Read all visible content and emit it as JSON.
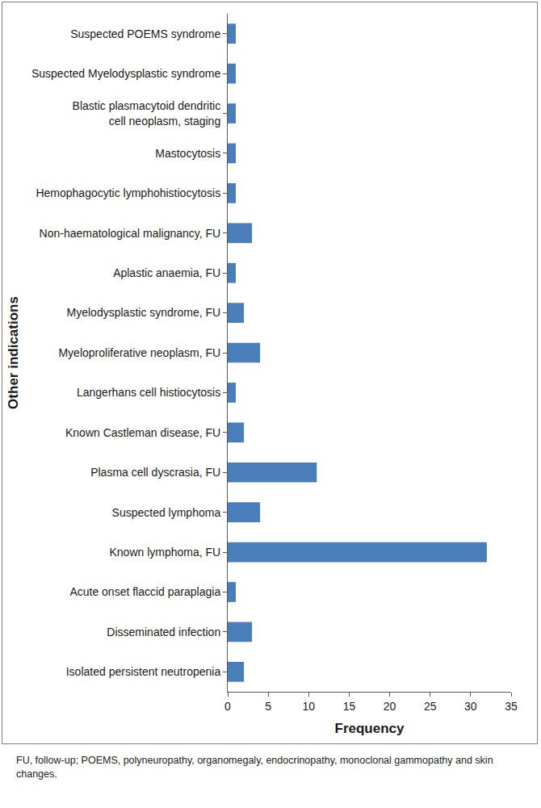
{
  "chart_data": {
    "type": "bar",
    "orientation": "horizontal",
    "x_label": "Frequency",
    "y_label": "Other indications",
    "categories": [
      "Isolated persistent neutropenia",
      "Disseminated infection",
      "Acute onset flaccid paraplagia",
      "Known lymphoma, FU",
      "Suspected lymphoma",
      "Plasma cell dyscrasia, FU",
      "Known Castleman disease, FU",
      "Langerhans cell histiocytosis",
      "Myeloproliferative neoplasm, FU",
      "Myelodysplastic syndrome, FU",
      "Aplastic anaemia, FU",
      "Non-haematological malignancy, FU",
      "Hemophagocytic lymphohistiocytosis",
      "Mastocytosis",
      "Blastic plasmacytoid dendritic cell neoplasm, staging",
      "Suspected Myelodysplastic syndrome",
      "Suspected POEMS syndrome"
    ],
    "values": [
      2,
      3,
      1,
      32,
      4,
      11,
      2,
      1,
      4,
      2,
      1,
      3,
      1,
      1,
      1,
      1,
      1
    ],
    "color": "#4a7ebb",
    "xlim": [
      0,
      35
    ],
    "xticks": [
      0,
      5,
      10,
      15,
      20,
      25,
      30,
      35
    ],
    "grid": false,
    "annotations": [
      "FU, follow-up; POEMS, polyneuropathy, organomegaly, endocrinopathy, monoclonal gammopathy and skin changes."
    ]
  }
}
